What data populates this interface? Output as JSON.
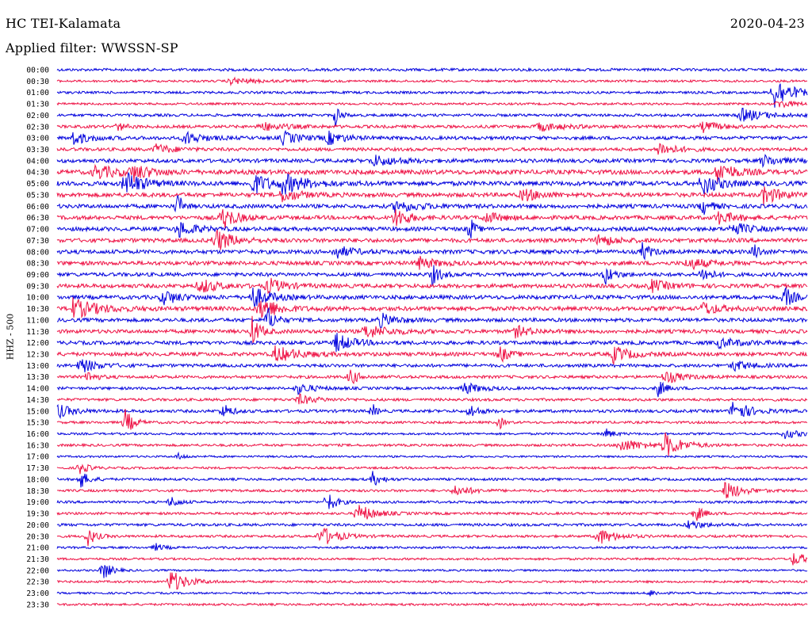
{
  "header": {
    "station": "HC TEI-Kalamata",
    "date": "2020-04-23",
    "filter": "Applied filter: WWSSN-SP",
    "y_axis_label": "HHZ - 500"
  },
  "colors": {
    "trace_a": "#0000dd",
    "trace_b": "#ee1144",
    "background": "#ffffff"
  },
  "chart_data": {
    "type": "line",
    "subtype": "helicorder",
    "title": "HC TEI-Kalamata",
    "ylabel": "HHZ - 500",
    "xlabel": "",
    "grid": false,
    "legend": "none",
    "row_interval_minutes": 30,
    "rows": [
      {
        "label": "00:00",
        "color": "#0000dd",
        "activity": 0.5,
        "events": []
      },
      {
        "label": "00:30",
        "color": "#ee1144",
        "activity": 0.3,
        "events": [
          {
            "x": 0.23,
            "amp": 0.3,
            "w": 0.03
          }
        ]
      },
      {
        "label": "01:00",
        "color": "#0000dd",
        "activity": 0.4,
        "events": [
          {
            "x": 0.955,
            "amp": 1.6,
            "w": 0.02
          }
        ]
      },
      {
        "label": "01:30",
        "color": "#ee1144",
        "activity": 0.3,
        "events": [
          {
            "x": 0.96,
            "amp": 0.4,
            "w": 0.02
          }
        ]
      },
      {
        "label": "02:00",
        "color": "#0000dd",
        "activity": 0.5,
        "events": [
          {
            "x": 0.37,
            "amp": 1.2,
            "w": 0.006
          },
          {
            "x": 0.91,
            "amp": 0.6,
            "w": 0.03
          }
        ]
      },
      {
        "label": "02:30",
        "color": "#ee1144",
        "activity": 0.6,
        "events": [
          {
            "x": 0.08,
            "amp": 0.4,
            "w": 0.01
          },
          {
            "x": 0.27,
            "amp": 0.4,
            "w": 0.03
          },
          {
            "x": 0.64,
            "amp": 0.4,
            "w": 0.03
          },
          {
            "x": 0.86,
            "amp": 0.5,
            "w": 0.02
          }
        ]
      },
      {
        "label": "03:00",
        "color": "#0000dd",
        "activity": 0.8,
        "events": [
          {
            "x": 0.02,
            "amp": 0.6,
            "w": 0.02
          },
          {
            "x": 0.17,
            "amp": 0.6,
            "w": 0.02
          },
          {
            "x": 0.3,
            "amp": 0.6,
            "w": 0.02
          },
          {
            "x": 0.36,
            "amp": 0.6,
            "w": 0.02
          }
        ]
      },
      {
        "label": "03:30",
        "color": "#ee1144",
        "activity": 0.7,
        "events": [
          {
            "x": 0.13,
            "amp": 0.5,
            "w": 0.02
          },
          {
            "x": 0.8,
            "amp": 0.7,
            "w": 0.02
          }
        ]
      },
      {
        "label": "04:00",
        "color": "#0000dd",
        "activity": 0.9,
        "events": [
          {
            "x": 0.42,
            "amp": 0.5,
            "w": 0.03
          },
          {
            "x": 0.94,
            "amp": 0.5,
            "w": 0.02
          }
        ]
      },
      {
        "label": "04:30",
        "color": "#ee1144",
        "activity": 1.2,
        "events": [
          {
            "x": 0.05,
            "amp": 0.6,
            "w": 0.03
          },
          {
            "x": 0.1,
            "amp": 0.7,
            "w": 0.02
          },
          {
            "x": 0.88,
            "amp": 1.0,
            "w": 0.02
          }
        ]
      },
      {
        "label": "05:00",
        "color": "#0000dd",
        "activity": 1.2,
        "events": [
          {
            "x": 0.09,
            "amp": 1.2,
            "w": 0.02
          },
          {
            "x": 0.26,
            "amp": 1.0,
            "w": 0.02
          },
          {
            "x": 0.3,
            "amp": 0.8,
            "w": 0.03
          },
          {
            "x": 0.86,
            "amp": 1.0,
            "w": 0.02
          }
        ]
      },
      {
        "label": "05:30",
        "color": "#ee1144",
        "activity": 1.1,
        "events": [
          {
            "x": 0.3,
            "amp": 0.6,
            "w": 0.02
          },
          {
            "x": 0.62,
            "amp": 0.6,
            "w": 0.02
          },
          {
            "x": 0.94,
            "amp": 0.9,
            "w": 0.02
          }
        ]
      },
      {
        "label": "06:00",
        "color": "#0000dd",
        "activity": 1.0,
        "events": [
          {
            "x": 0.16,
            "amp": 1.6,
            "w": 0.005
          },
          {
            "x": 0.45,
            "amp": 0.5,
            "w": 0.03
          },
          {
            "x": 0.86,
            "amp": 0.8,
            "w": 0.01
          }
        ]
      },
      {
        "label": "06:30",
        "color": "#ee1144",
        "activity": 1.0,
        "events": [
          {
            "x": 0.22,
            "amp": 1.2,
            "w": 0.015
          },
          {
            "x": 0.45,
            "amp": 1.0,
            "w": 0.015
          },
          {
            "x": 0.57,
            "amp": 0.5,
            "w": 0.02
          },
          {
            "x": 0.88,
            "amp": 0.6,
            "w": 0.02
          }
        ]
      },
      {
        "label": "07:00",
        "color": "#0000dd",
        "activity": 1.0,
        "events": [
          {
            "x": 0.16,
            "amp": 0.8,
            "w": 0.02
          },
          {
            "x": 0.55,
            "amp": 1.4,
            "w": 0.005
          },
          {
            "x": 0.9,
            "amp": 0.6,
            "w": 0.02
          }
        ]
      },
      {
        "label": "07:30",
        "color": "#ee1144",
        "activity": 1.0,
        "events": [
          {
            "x": 0.21,
            "amp": 1.1,
            "w": 0.02
          },
          {
            "x": 0.72,
            "amp": 0.6,
            "w": 0.02
          }
        ]
      },
      {
        "label": "08:00",
        "color": "#0000dd",
        "activity": 1.0,
        "events": [
          {
            "x": 0.37,
            "amp": 0.6,
            "w": 0.02
          },
          {
            "x": 0.78,
            "amp": 0.8,
            "w": 0.01
          },
          {
            "x": 0.93,
            "amp": 1.0,
            "w": 0.005
          }
        ]
      },
      {
        "label": "08:30",
        "color": "#ee1144",
        "activity": 1.0,
        "events": [
          {
            "x": 0.48,
            "amp": 0.6,
            "w": 0.02
          },
          {
            "x": 0.84,
            "amp": 0.6,
            "w": 0.02
          }
        ]
      },
      {
        "label": "09:00",
        "color": "#0000dd",
        "activity": 0.9,
        "events": [
          {
            "x": 0.5,
            "amp": 0.9,
            "w": 0.01
          },
          {
            "x": 0.73,
            "amp": 0.9,
            "w": 0.01
          },
          {
            "x": 0.86,
            "amp": 0.8,
            "w": 0.01
          }
        ]
      },
      {
        "label": "09:30",
        "color": "#ee1144",
        "activity": 1.0,
        "events": [
          {
            "x": 0.19,
            "amp": 0.7,
            "w": 0.02
          },
          {
            "x": 0.28,
            "amp": 0.7,
            "w": 0.02
          },
          {
            "x": 0.79,
            "amp": 0.6,
            "w": 0.02
          }
        ]
      },
      {
        "label": "10:00",
        "color": "#0000dd",
        "activity": 1.0,
        "events": [
          {
            "x": 0.14,
            "amp": 0.7,
            "w": 0.02
          },
          {
            "x": 0.26,
            "amp": 1.0,
            "w": 0.02
          },
          {
            "x": 0.97,
            "amp": 1.0,
            "w": 0.01
          }
        ]
      },
      {
        "label": "10:30",
        "color": "#ee1144",
        "activity": 1.1,
        "events": [
          {
            "x": 0.02,
            "amp": 0.9,
            "w": 0.03
          },
          {
            "x": 0.27,
            "amp": 1.2,
            "w": 0.02
          },
          {
            "x": 0.86,
            "amp": 0.6,
            "w": 0.02
          }
        ]
      },
      {
        "label": "11:00",
        "color": "#0000dd",
        "activity": 0.9,
        "events": [
          {
            "x": 0.28,
            "amp": 1.2,
            "w": 0.01
          },
          {
            "x": 0.43,
            "amp": 0.6,
            "w": 0.02
          }
        ]
      },
      {
        "label": "11:30",
        "color": "#ee1144",
        "activity": 0.9,
        "events": [
          {
            "x": 0.26,
            "amp": 1.3,
            "w": 0.01
          },
          {
            "x": 0.41,
            "amp": 0.6,
            "w": 0.03
          },
          {
            "x": 0.61,
            "amp": 0.5,
            "w": 0.02
          }
        ]
      },
      {
        "label": "12:00",
        "color": "#0000dd",
        "activity": 0.9,
        "events": [
          {
            "x": 0.37,
            "amp": 0.9,
            "w": 0.02
          },
          {
            "x": 0.88,
            "amp": 0.4,
            "w": 0.03
          }
        ]
      },
      {
        "label": "12:30",
        "color": "#ee1144",
        "activity": 0.9,
        "events": [
          {
            "x": 0.29,
            "amp": 0.7,
            "w": 0.03
          },
          {
            "x": 0.59,
            "amp": 0.8,
            "w": 0.01
          },
          {
            "x": 0.74,
            "amp": 0.8,
            "w": 0.02
          }
        ]
      },
      {
        "label": "13:00",
        "color": "#0000dd",
        "activity": 0.7,
        "events": [
          {
            "x": 0.03,
            "amp": 0.7,
            "w": 0.02
          },
          {
            "x": 0.9,
            "amp": 0.5,
            "w": 0.02
          }
        ]
      },
      {
        "label": "13:30",
        "color": "#ee1144",
        "activity": 0.6,
        "events": [
          {
            "x": 0.04,
            "amp": 0.6,
            "w": 0.01
          },
          {
            "x": 0.39,
            "amp": 0.8,
            "w": 0.01
          },
          {
            "x": 0.81,
            "amp": 0.6,
            "w": 0.02
          }
        ]
      },
      {
        "label": "14:00",
        "color": "#0000dd",
        "activity": 0.5,
        "events": [
          {
            "x": 0.32,
            "amp": 0.5,
            "w": 0.02
          },
          {
            "x": 0.54,
            "amp": 0.6,
            "w": 0.02
          },
          {
            "x": 0.8,
            "amp": 0.8,
            "w": 0.01
          }
        ]
      },
      {
        "label": "14:30",
        "color": "#ee1144",
        "activity": 0.5,
        "events": [
          {
            "x": 0.32,
            "amp": 0.5,
            "w": 0.02
          }
        ]
      },
      {
        "label": "15:00",
        "color": "#0000dd",
        "activity": 0.6,
        "events": [
          {
            "x": 0.0,
            "amp": 0.6,
            "w": 0.02
          },
          {
            "x": 0.22,
            "amp": 0.8,
            "w": 0.01
          },
          {
            "x": 0.42,
            "amp": 0.7,
            "w": 0.005
          },
          {
            "x": 0.55,
            "amp": 0.7,
            "w": 0.01
          },
          {
            "x": 0.9,
            "amp": 1.0,
            "w": 0.02
          }
        ]
      },
      {
        "label": "15:30",
        "color": "#ee1144",
        "activity": 0.4,
        "events": [
          {
            "x": 0.09,
            "amp": 1.3,
            "w": 0.01
          },
          {
            "x": 0.59,
            "amp": 0.6,
            "w": 0.005
          }
        ]
      },
      {
        "label": "16:00",
        "color": "#0000dd",
        "activity": 0.3,
        "events": [
          {
            "x": 0.73,
            "amp": 0.5,
            "w": 0.01
          },
          {
            "x": 0.97,
            "amp": 0.4,
            "w": 0.02
          }
        ]
      },
      {
        "label": "16:30",
        "color": "#ee1144",
        "activity": 0.4,
        "events": [
          {
            "x": 0.75,
            "amp": 0.6,
            "w": 0.03
          },
          {
            "x": 0.81,
            "amp": 1.1,
            "w": 0.02
          }
        ]
      },
      {
        "label": "17:00",
        "color": "#0000dd",
        "activity": 0.2,
        "events": [
          {
            "x": 0.16,
            "amp": 0.3,
            "w": 0.01
          }
        ]
      },
      {
        "label": "17:30",
        "color": "#ee1144",
        "activity": 0.3,
        "events": [
          {
            "x": 0.03,
            "amp": 0.6,
            "w": 0.01
          }
        ]
      },
      {
        "label": "18:00",
        "color": "#0000dd",
        "activity": 0.4,
        "events": [
          {
            "x": 0.03,
            "amp": 0.9,
            "w": 0.01
          },
          {
            "x": 0.42,
            "amp": 0.7,
            "w": 0.01
          }
        ]
      },
      {
        "label": "18:30",
        "color": "#ee1144",
        "activity": 0.4,
        "events": [
          {
            "x": 0.53,
            "amp": 0.5,
            "w": 0.02
          },
          {
            "x": 0.89,
            "amp": 0.9,
            "w": 0.02
          }
        ]
      },
      {
        "label": "19:00",
        "color": "#0000dd",
        "activity": 0.4,
        "events": [
          {
            "x": 0.15,
            "amp": 0.6,
            "w": 0.01
          },
          {
            "x": 0.36,
            "amp": 1.0,
            "w": 0.01
          }
        ]
      },
      {
        "label": "19:30",
        "color": "#ee1144",
        "activity": 0.4,
        "events": [
          {
            "x": 0.4,
            "amp": 0.9,
            "w": 0.02
          },
          {
            "x": 0.85,
            "amp": 0.8,
            "w": 0.01
          }
        ]
      },
      {
        "label": "20:00",
        "color": "#0000dd",
        "activity": 0.5,
        "events": [
          {
            "x": 0.84,
            "amp": 0.4,
            "w": 0.02
          }
        ]
      },
      {
        "label": "20:30",
        "color": "#ee1144",
        "activity": 0.4,
        "events": [
          {
            "x": 0.04,
            "amp": 0.9,
            "w": 0.01
          },
          {
            "x": 0.35,
            "amp": 1.0,
            "w": 0.02
          },
          {
            "x": 0.72,
            "amp": 0.8,
            "w": 0.02
          }
        ]
      },
      {
        "label": "21:00",
        "color": "#0000dd",
        "activity": 0.3,
        "events": [
          {
            "x": 0.13,
            "amp": 0.4,
            "w": 0.01
          }
        ]
      },
      {
        "label": "21:30",
        "color": "#ee1144",
        "activity": 0.3,
        "events": [
          {
            "x": 0.98,
            "amp": 0.6,
            "w": 0.02
          }
        ]
      },
      {
        "label": "22:00",
        "color": "#0000dd",
        "activity": 0.2,
        "events": [
          {
            "x": 0.06,
            "amp": 1.0,
            "w": 0.01
          }
        ]
      },
      {
        "label": "22:30",
        "color": "#ee1144",
        "activity": 0.3,
        "events": [
          {
            "x": 0.15,
            "amp": 1.1,
            "w": 0.02
          }
        ]
      },
      {
        "label": "23:00",
        "color": "#0000dd",
        "activity": 0.2,
        "events": [
          {
            "x": 0.79,
            "amp": 0.3,
            "w": 0.01
          }
        ]
      },
      {
        "label": "23:30",
        "color": "#ee1144",
        "activity": 0.3,
        "events": []
      }
    ]
  }
}
